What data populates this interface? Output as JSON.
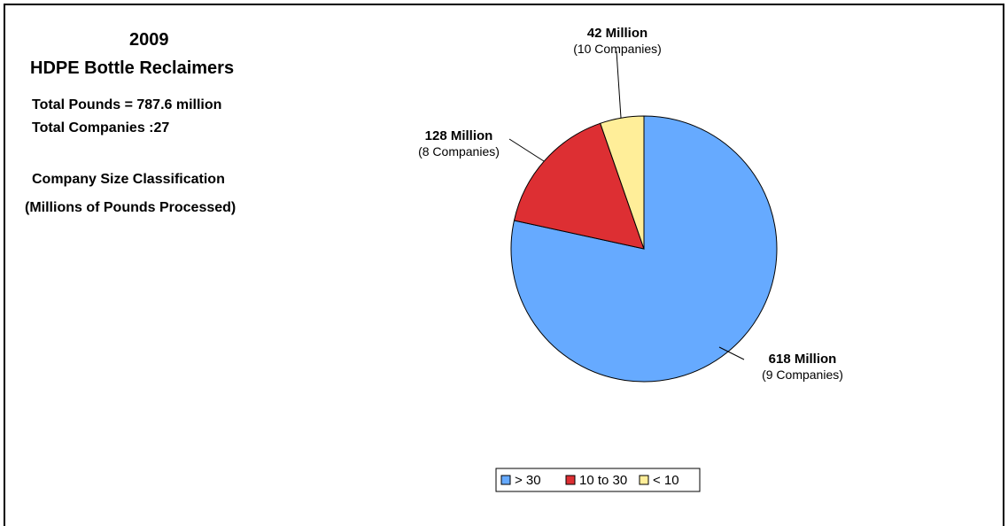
{
  "header": {
    "year": "2009",
    "title": "HDPE Bottle Reclaimers",
    "total_pounds": "Total Pounds = 787.6 million",
    "total_companies": "Total Companies :27",
    "classification": "Company Size Classification",
    "classification_unit": "(Millions of Pounds Processed)"
  },
  "chart_data": {
    "type": "pie",
    "title": "",
    "slices": [
      {
        "name": "> 30",
        "value": 618,
        "label": "618 Million",
        "sublabel": "(9 Companies)",
        "color": "#66aaff"
      },
      {
        "name": "10 to 30",
        "value": 128,
        "label": "128 Million",
        "sublabel": "(8 Companies)",
        "color": "#dd2f33"
      },
      {
        "name": "< 10",
        "value": 42,
        "label": "42 Million",
        "sublabel": "(10 Companies)",
        "color": "#ffee99"
      }
    ],
    "start": "12 o'clock",
    "direction": "clockwise",
    "legend_position": "bottom"
  }
}
